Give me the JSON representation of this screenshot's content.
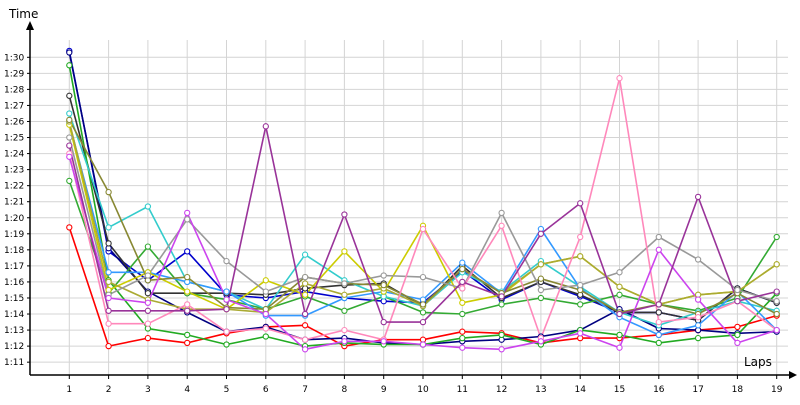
{
  "chart_data": {
    "type": "line",
    "ylabel": "Time",
    "xlabel": "Laps",
    "grid": true,
    "legend": "none",
    "x": [
      1,
      2,
      3,
      4,
      5,
      6,
      7,
      8,
      9,
      10,
      11,
      12,
      13,
      14,
      15,
      16,
      17,
      18,
      19
    ],
    "xlim": [
      0,
      19.6
    ],
    "ylim": [
      70.2,
      92.2
    ],
    "y_ticks": [
      {
        "value": 71,
        "label": "1:11"
      },
      {
        "value": 72,
        "label": "1:12"
      },
      {
        "value": 73,
        "label": "1:13"
      },
      {
        "value": 74,
        "label": "1:14"
      },
      {
        "value": 75,
        "label": "1:15"
      },
      {
        "value": 76,
        "label": "1:16"
      },
      {
        "value": 77,
        "label": "1:17"
      },
      {
        "value": 78,
        "label": "1:18"
      },
      {
        "value": 79,
        "label": "1:19"
      },
      {
        "value": 80,
        "label": "1:20"
      },
      {
        "value": 81,
        "label": "1:21"
      },
      {
        "value": 82,
        "label": "1:22"
      },
      {
        "value": 83,
        "label": "1:23"
      },
      {
        "value": 84,
        "label": "1:24"
      },
      {
        "value": 85,
        "label": "1:25"
      },
      {
        "value": 86,
        "label": "1:26"
      },
      {
        "value": 87,
        "label": "1:27"
      },
      {
        "value": 88,
        "label": "1:28"
      },
      {
        "value": 89,
        "label": "1:29"
      },
      {
        "value": 90,
        "label": "1:30"
      }
    ],
    "series": [
      {
        "color": "#ff0000",
        "values": [
          79.4,
          72.0,
          72.5,
          72.2,
          72.8,
          73.2,
          73.3,
          72.0,
          72.4,
          72.4,
          72.9,
          72.8,
          72.2,
          72.5,
          72.5,
          72.7,
          73.0,
          73.2,
          73.9
        ]
      },
      {
        "color": "#0000cc",
        "values": [
          90.4,
          77.9,
          76.1,
          77.9,
          75.2,
          75.0,
          75.4,
          75.0,
          74.8,
          74.7,
          76.7,
          74.9,
          76.0,
          75.1,
          74.1,
          74.1,
          73.6,
          75.6,
          74.7
        ]
      },
      {
        "color": "#000080",
        "values": [
          90.3,
          78.1,
          75.4,
          74.1,
          72.9,
          73.2,
          72.4,
          72.5,
          72.2,
          72.1,
          72.3,
          72.4,
          72.6,
          73.0,
          74.3,
          73.1,
          73.0,
          72.8,
          72.9
        ]
      },
      {
        "color": "#333333",
        "values": [
          87.6,
          78.4,
          75.3,
          75.3,
          75.3,
          75.2,
          75.6,
          75.8,
          75.9,
          74.5,
          77.0,
          75.0,
          76.0,
          75.2,
          74.1,
          74.1,
          73.6,
          75.6,
          74.7
        ]
      },
      {
        "color": "#22aa22",
        "values": [
          89.5,
          76.1,
          73.1,
          72.7,
          72.1,
          72.6,
          72.0,
          72.2,
          72.1,
          72.1,
          72.5,
          72.7,
          72.1,
          73.0,
          72.7,
          72.2,
          72.5,
          72.7,
          75.3
        ]
      },
      {
        "color": "#33aa33",
        "values": [
          82.3,
          75.3,
          78.2,
          75.3,
          74.9,
          74.3,
          75.1,
          74.2,
          75.1,
          74.1,
          74.0,
          74.6,
          75.0,
          74.6,
          75.2,
          74.6,
          74.2,
          75.0,
          78.8
        ]
      },
      {
        "color": "#33cccc",
        "values": [
          86.5,
          79.4,
          80.7,
          76.0,
          75.4,
          74.3,
          77.7,
          76.1,
          75.1,
          74.5,
          76.6,
          75.4,
          77.3,
          75.7,
          74.1,
          73.3,
          74.1,
          74.8,
          74.2
        ]
      },
      {
        "color": "#3399ff",
        "values": [
          85.9,
          76.6,
          76.6,
          76.0,
          75.4,
          73.9,
          73.9,
          75.0,
          75.4,
          74.9,
          77.2,
          75.3,
          79.3,
          75.6,
          73.8,
          72.7,
          73.3,
          75.4,
          73.0
        ]
      },
      {
        "color": "#cccc00",
        "values": [
          85.8,
          75.5,
          76.6,
          75.4,
          74.3,
          76.1,
          75.2,
          77.9,
          75.4,
          79.5,
          74.7,
          75.2,
          77.1,
          77.6,
          75.7,
          74.6,
          75.2,
          75.4,
          77.1
        ]
      },
      {
        "color": "#aaaa33",
        "values": [
          86.0,
          76.0,
          74.9,
          74.3,
          74.3,
          74.1,
          75.9,
          75.2,
          75.6,
          74.5,
          76.8,
          75.3,
          77.1,
          77.6,
          75.7,
          74.6,
          75.2,
          75.4,
          77.1
        ]
      },
      {
        "color": "#888833",
        "values": [
          86.1,
          81.6,
          76.1,
          76.3,
          74.4,
          74.3,
          76.3,
          75.9,
          75.8,
          74.6,
          76.8,
          75.3,
          76.2,
          75.5,
          74.1,
          74.6,
          74.0,
          75.3,
          74.0
        ]
      },
      {
        "color": "#999999",
        "values": [
          85.0,
          75.2,
          76.4,
          79.9,
          77.3,
          75.4,
          76.3,
          75.9,
          76.4,
          76.3,
          75.6,
          80.3,
          75.5,
          75.8,
          76.6,
          78.8,
          77.4,
          75.5,
          74.8
        ]
      },
      {
        "color": "#ff88bb",
        "values": [
          84.0,
          73.4,
          73.4,
          74.6,
          72.9,
          73.1,
          72.4,
          73.0,
          72.4,
          79.3,
          75.6,
          79.5,
          72.5,
          78.8,
          88.7,
          73.5,
          73.8,
          74.8,
          73.0
        ]
      },
      {
        "color": "#cc44ee",
        "values": [
          83.8,
          75.0,
          74.7,
          80.3,
          74.9,
          74.0,
          71.8,
          72.3,
          72.3,
          72.1,
          71.9,
          71.8,
          72.3,
          72.8,
          71.9,
          78.0,
          74.9,
          72.2,
          73.0
        ]
      },
      {
        "color": "#993399",
        "values": [
          84.5,
          74.2,
          74.2,
          74.2,
          74.3,
          85.7,
          74.0,
          80.2,
          73.5,
          73.5,
          76.0,
          75.1,
          79.0,
          80.9,
          74.0,
          74.6,
          81.3,
          74.8,
          75.4
        ]
      }
    ]
  }
}
